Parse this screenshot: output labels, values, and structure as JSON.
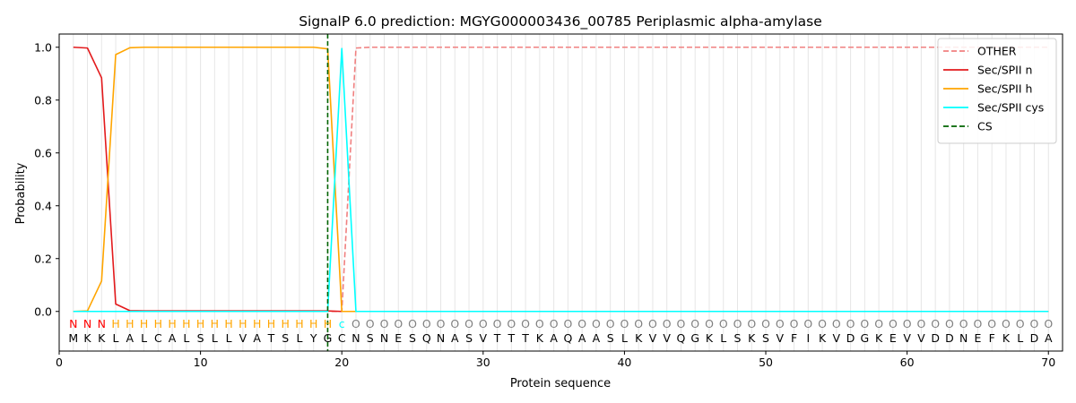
{
  "chart_data": {
    "type": "line",
    "title": "SignalP 6.0 prediction: MGYG000003436_00785 Periplasmic alpha-amylase",
    "xlabel": "Protein sequence",
    "ylabel": "Probability",
    "xlim": [
      0,
      71
    ],
    "ylim": [
      -0.15,
      1.05
    ],
    "xticks": [
      0,
      10,
      20,
      30,
      40,
      50,
      60,
      70
    ],
    "yticks": [
      0.0,
      0.2,
      0.4,
      0.6,
      0.8,
      1.0
    ],
    "ytick_labels": [
      "0.0",
      "0.2",
      "0.4",
      "0.6",
      "0.8",
      "1.0"
    ],
    "legend_position": "top-right",
    "sequence": [
      "M",
      "K",
      "K",
      "L",
      "A",
      "L",
      "C",
      "A",
      "L",
      "S",
      "L",
      "L",
      "V",
      "A",
      "T",
      "S",
      "L",
      "Y",
      "G",
      "C",
      "N",
      "S",
      "N",
      "E",
      "S",
      "Q",
      "N",
      "A",
      "S",
      "V",
      "T",
      "T",
      "T",
      "K",
      "A",
      "Q",
      "A",
      "A",
      "S",
      "L",
      "K",
      "V",
      "V",
      "Q",
      "G",
      "K",
      "L",
      "S",
      "K",
      "S",
      "V",
      "F",
      "I",
      "K",
      "V",
      "D",
      "G",
      "K",
      "E",
      "V",
      "V",
      "D",
      "D",
      "N",
      "E",
      "F",
      "K",
      "L",
      "D",
      "A"
    ],
    "region_labels": [
      "N",
      "N",
      "N",
      "H",
      "H",
      "H",
      "H",
      "H",
      "H",
      "H",
      "H",
      "H",
      "H",
      "H",
      "H",
      "H",
      "H",
      "H",
      "H",
      "C",
      "O",
      "O",
      "O",
      "O",
      "O",
      "O",
      "O",
      "O",
      "O",
      "O",
      "O",
      "O",
      "O",
      "O",
      "O",
      "O",
      "O",
      "O",
      "O",
      "O",
      "O",
      "O",
      "O",
      "O",
      "O",
      "O",
      "O",
      "O",
      "O",
      "O",
      "O",
      "O",
      "O",
      "O",
      "O",
      "O",
      "O",
      "O",
      "O",
      "O",
      "O",
      "O",
      "O",
      "O",
      "O",
      "O",
      "O",
      "O",
      "O",
      "O"
    ],
    "region_colors": {
      "N": "#ff0000",
      "H": "#ffa500",
      "C": "#00ffff",
      "O": "#808080"
    },
    "cleavage_site": 19,
    "series": [
      {
        "name": "OTHER",
        "color": "#f08080",
        "dash": "dashed",
        "values": [
          0.0,
          0.0,
          0.0,
          0.0,
          0.0,
          0.0,
          0.0,
          0.0,
          0.0,
          0.0,
          0.0,
          0.0,
          0.0,
          0.0,
          0.0,
          0.0,
          0.0,
          0.0,
          0.0,
          0.0,
          0.997,
          1.0,
          1.0,
          1.0,
          1.0,
          1.0,
          1.0,
          1.0,
          1.0,
          1.0,
          1.0,
          1.0,
          1.0,
          1.0,
          1.0,
          1.0,
          1.0,
          1.0,
          1.0,
          1.0,
          1.0,
          1.0,
          1.0,
          1.0,
          1.0,
          1.0,
          1.0,
          1.0,
          1.0,
          1.0,
          1.0,
          1.0,
          1.0,
          1.0,
          1.0,
          1.0,
          1.0,
          1.0,
          1.0,
          1.0,
          1.0,
          1.0,
          1.0,
          1.0,
          1.0,
          1.0,
          1.0,
          1.0,
          1.0,
          1.0
        ]
      },
      {
        "name": "Sec/SPII n",
        "color": "#e31a1c",
        "dash": "solid",
        "values": [
          1.0,
          0.997,
          0.884,
          0.028,
          0.003,
          0.002,
          0.002,
          0.002,
          0.002,
          0.002,
          0.002,
          0.002,
          0.002,
          0.002,
          0.002,
          0.002,
          0.002,
          0.002,
          0.002,
          0.0,
          0.0,
          0.0,
          0.0,
          0.0,
          0.0,
          0.0,
          0.0,
          0.0,
          0.0,
          0.0,
          0.0,
          0.0,
          0.0,
          0.0,
          0.0,
          0.0,
          0.0,
          0.0,
          0.0,
          0.0,
          0.0,
          0.0,
          0.0,
          0.0,
          0.0,
          0.0,
          0.0,
          0.0,
          0.0,
          0.0,
          0.0,
          0.0,
          0.0,
          0.0,
          0.0,
          0.0,
          0.0,
          0.0,
          0.0,
          0.0,
          0.0,
          0.0,
          0.0,
          0.0,
          0.0,
          0.0,
          0.0,
          0.0,
          0.0,
          0.0
        ]
      },
      {
        "name": "Sec/SPII h",
        "color": "#ffa500",
        "dash": "solid",
        "values": [
          0.0,
          0.002,
          0.115,
          0.972,
          0.998,
          1.0,
          1.0,
          1.0,
          1.0,
          1.0,
          1.0,
          1.0,
          1.0,
          1.0,
          1.0,
          1.0,
          1.0,
          1.0,
          0.994,
          0.0,
          0.0,
          0.0,
          0.0,
          0.0,
          0.0,
          0.0,
          0.0,
          0.0,
          0.0,
          0.0,
          0.0,
          0.0,
          0.0,
          0.0,
          0.0,
          0.0,
          0.0,
          0.0,
          0.0,
          0.0,
          0.0,
          0.0,
          0.0,
          0.0,
          0.0,
          0.0,
          0.0,
          0.0,
          0.0,
          0.0,
          0.0,
          0.0,
          0.0,
          0.0,
          0.0,
          0.0,
          0.0,
          0.0,
          0.0,
          0.0,
          0.0,
          0.0,
          0.0,
          0.0,
          0.0,
          0.0,
          0.0,
          0.0,
          0.0,
          0.0
        ]
      },
      {
        "name": "Sec/SPII cys",
        "color": "#00ffff",
        "dash": "solid",
        "values": [
          0.0,
          0.0,
          0.0,
          0.0,
          0.0,
          0.0,
          0.0,
          0.0,
          0.0,
          0.0,
          0.0,
          0.0,
          0.0,
          0.0,
          0.0,
          0.0,
          0.0,
          0.0,
          0.0,
          0.995,
          0.0,
          0.0,
          0.0,
          0.0,
          0.0,
          0.0,
          0.0,
          0.0,
          0.0,
          0.0,
          0.0,
          0.0,
          0.0,
          0.0,
          0.0,
          0.0,
          0.0,
          0.0,
          0.0,
          0.0,
          0.0,
          0.0,
          0.0,
          0.0,
          0.0,
          0.0,
          0.0,
          0.0,
          0.0,
          0.0,
          0.0,
          0.0,
          0.0,
          0.0,
          0.0,
          0.0,
          0.0,
          0.0,
          0.0,
          0.0,
          0.0,
          0.0,
          0.0,
          0.0,
          0.0,
          0.0,
          0.0,
          0.0,
          0.0,
          0.0
        ]
      }
    ],
    "legend": [
      {
        "name": "OTHER",
        "color": "#f08080",
        "dash": "dashed"
      },
      {
        "name": "Sec/SPII n",
        "color": "#e31a1c",
        "dash": "solid"
      },
      {
        "name": "Sec/SPII h",
        "color": "#ffa500",
        "dash": "solid"
      },
      {
        "name": "Sec/SPII cys",
        "color": "#00ffff",
        "dash": "solid"
      },
      {
        "name": "CS",
        "color": "#006400",
        "dash": "dashed"
      }
    ]
  }
}
